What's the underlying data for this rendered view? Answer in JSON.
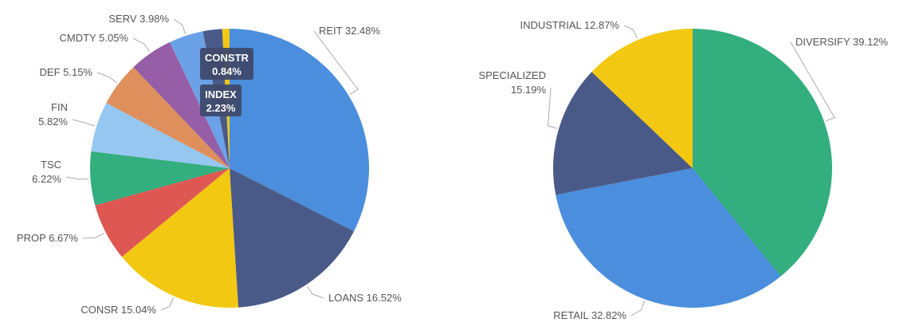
{
  "chart_data": [
    {
      "type": "pie",
      "title": "",
      "categories": [
        "REIT",
        "LOANS",
        "CONSR",
        "PROP",
        "TSC",
        "FIN",
        "DEF",
        "CMDTY",
        "SERV",
        "INDEX",
        "CONSTR"
      ],
      "values": [
        32.48,
        16.52,
        15.04,
        6.67,
        6.22,
        5.82,
        5.15,
        5.05,
        3.98,
        2.23,
        0.84
      ],
      "value_labels": [
        "32.48%",
        "16.52%",
        "15.04%",
        "6.67%",
        "6.22%",
        "5.82%",
        "5.15%",
        "5.05%",
        "3.98%",
        "2.23%",
        "0.84%"
      ],
      "colors": [
        "#4A8EDD",
        "#4A5A88",
        "#F2C812",
        "#DF5752",
        "#33AE7E",
        "#95C7F0",
        "#DE8F5B",
        "#955EA6",
        "#6BA1E6",
        "#4A5A88",
        "#F2C812"
      ],
      "callouts": [
        "INDEX",
        "CONSTR"
      ]
    },
    {
      "type": "pie",
      "title": "",
      "categories": [
        "DIVERSIFY",
        "RETAIL",
        "SPECIALIZED",
        "INDUSTRIAL"
      ],
      "values": [
        39.12,
        32.82,
        15.19,
        12.87
      ],
      "value_labels": [
        "39.12%",
        "32.82%",
        "15.19%",
        "12.87%"
      ],
      "colors": [
        "#33AE7E",
        "#4A8EDD",
        "#4A5A88",
        "#F2C812"
      ]
    }
  ]
}
